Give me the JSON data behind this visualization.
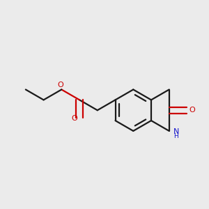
{
  "background_color": "#ebebeb",
  "bond_color": "#1a1a1a",
  "oxygen_color": "#cc0000",
  "nitrogen_color": "#1414cc",
  "bond_width": 1.6,
  "figsize": [
    3.0,
    3.0
  ],
  "dpi": 100,
  "xlim": [
    0.05,
    0.95
  ],
  "ylim": [
    0.25,
    0.85
  ]
}
